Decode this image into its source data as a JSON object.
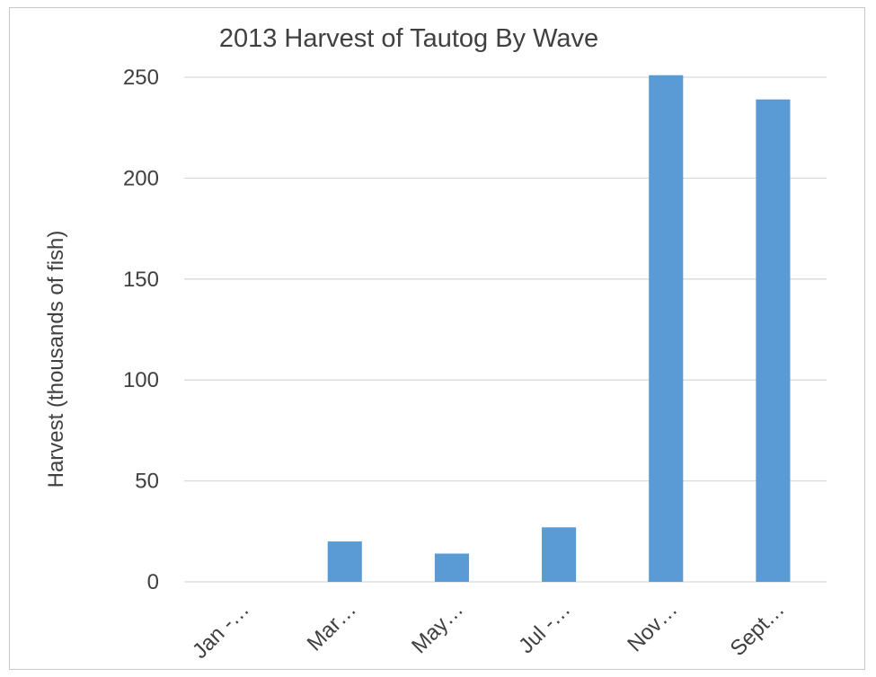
{
  "chart_data": {
    "type": "bar",
    "title": "2013 Harvest of Tautog By Wave",
    "xlabel": "",
    "ylabel": "Harvest (thousands of fish)",
    "categories": [
      "Jan -…",
      "Mar…",
      "May…",
      "Jul -…",
      "Nov…",
      "Sept…"
    ],
    "values": [
      0,
      20,
      14,
      27,
      251,
      239
    ],
    "yticks": [
      0,
      50,
      100,
      150,
      200,
      250
    ],
    "ylim": [
      0,
      250
    ],
    "grid": true,
    "legend": "none",
    "bar_color": "#5b9bd5",
    "grid_color": "#d9d9d9"
  }
}
